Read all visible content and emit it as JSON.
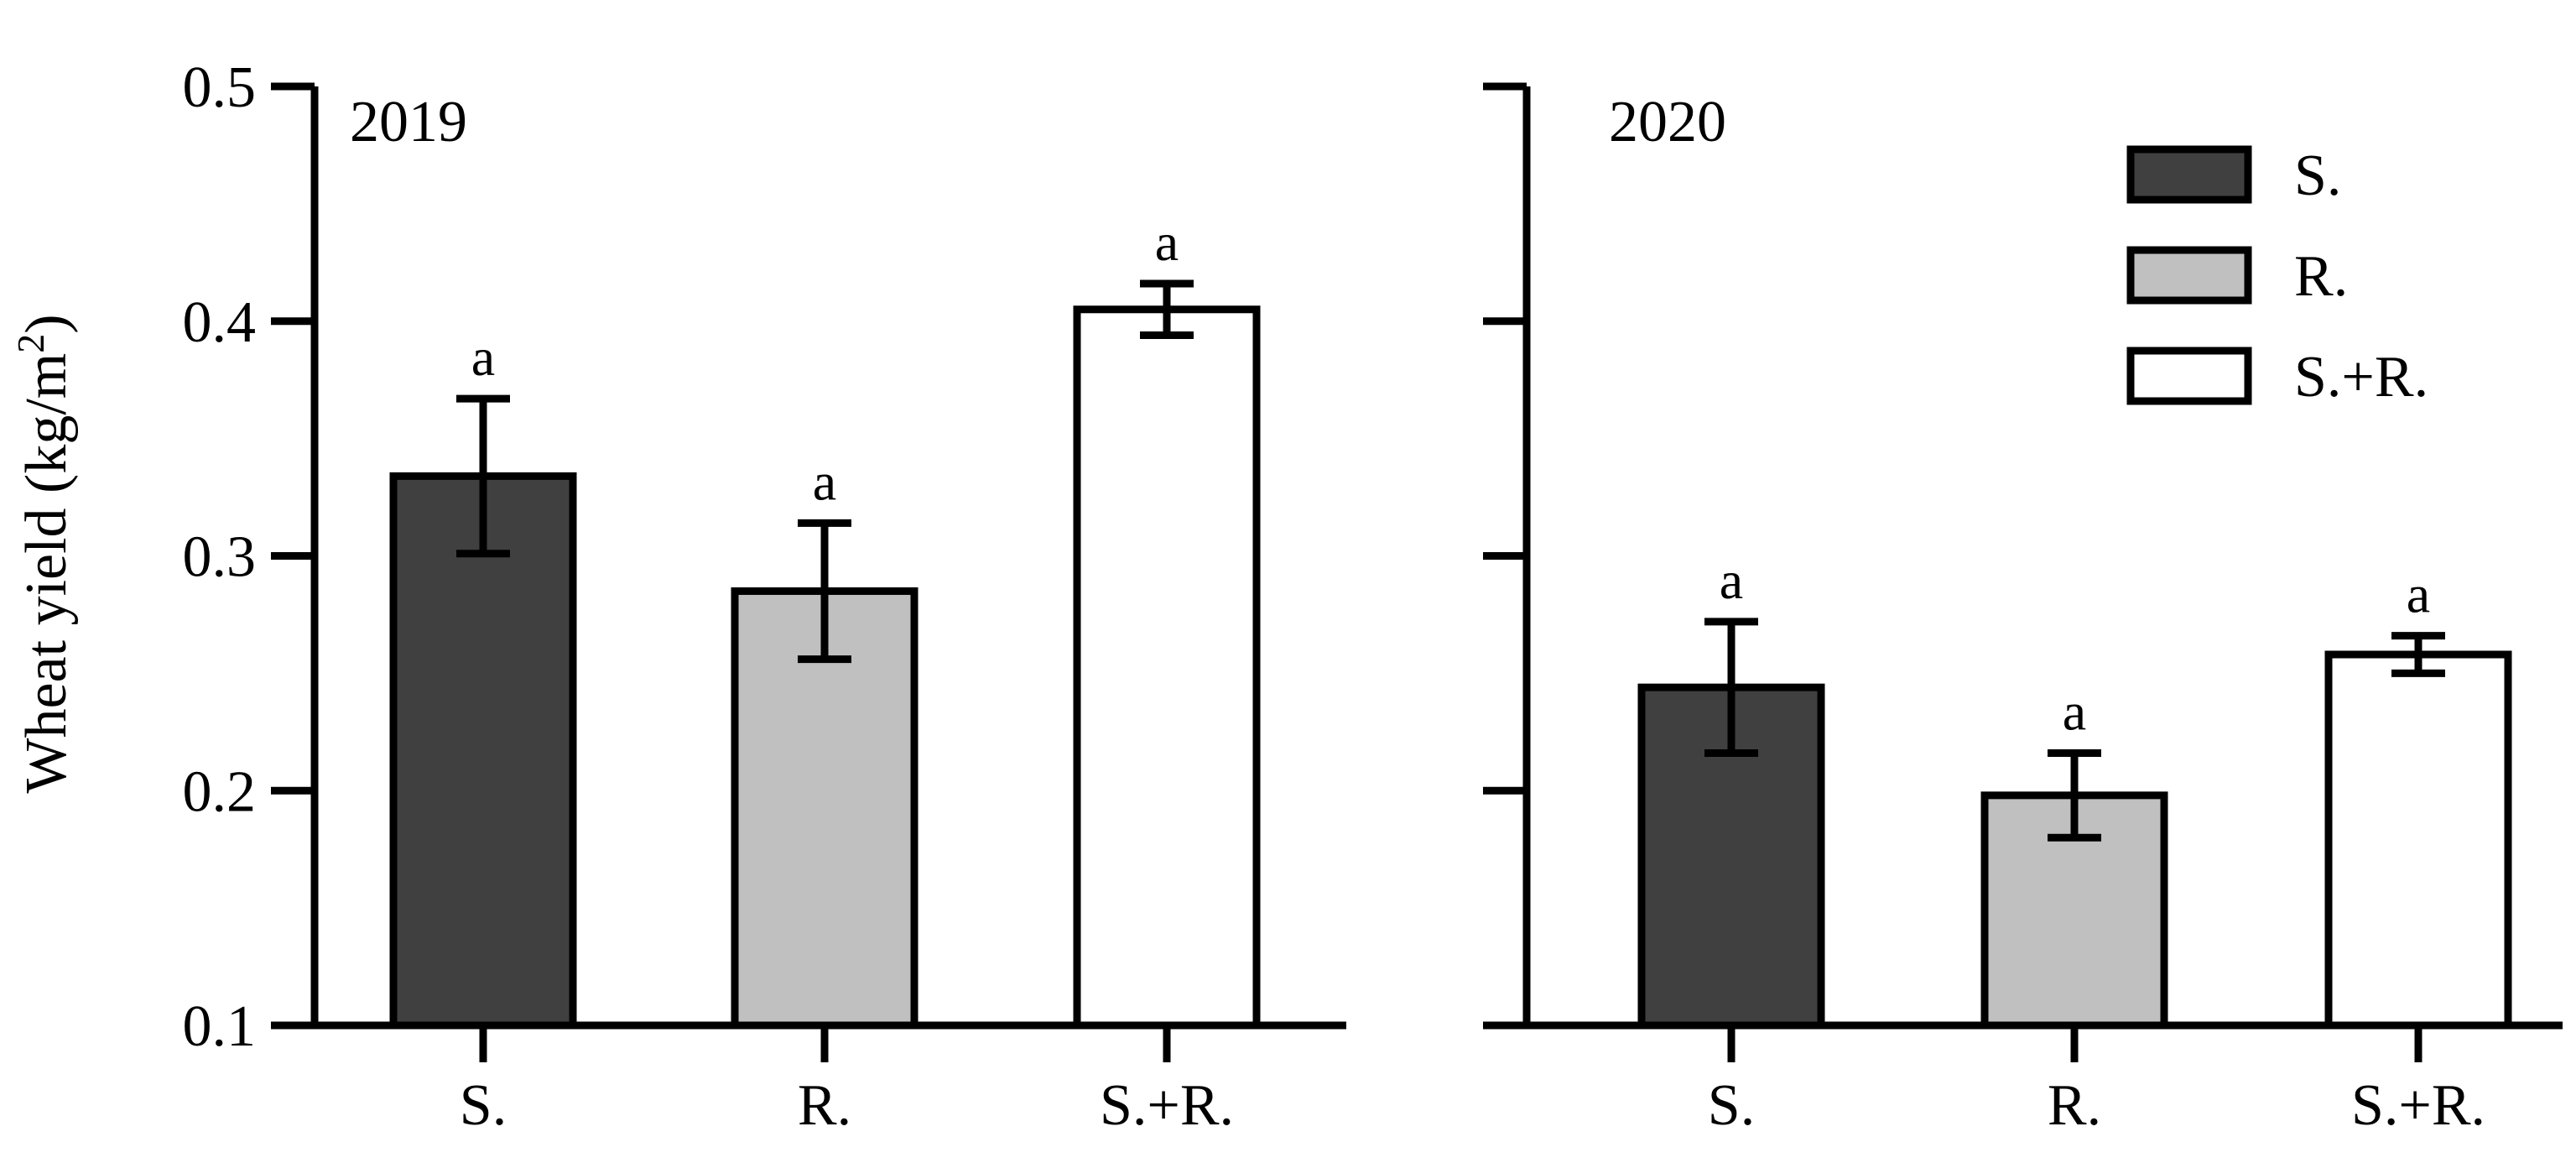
{
  "chart_data": {
    "type": "bar",
    "ylabel": "Wheat yield (kg/m",
    "ylabel_sup": "2",
    "ylabel_close": ")",
    "ylim": [
      0.1,
      0.5
    ],
    "yticks": [
      "0.1",
      "0.2",
      "0.3",
      "0.4",
      "0.5"
    ],
    "categories": [
      "S.",
      "R.",
      "S.+R."
    ],
    "legend": [
      {
        "name": "S.",
        "color": "#404040"
      },
      {
        "name": "R.",
        "color": "#c0c0c0"
      },
      {
        "name": "S.+R.",
        "color": "#ffffff"
      }
    ],
    "legend_position": "top-right",
    "grid": false,
    "panels": [
      {
        "label": "2019",
        "values": [
          0.334,
          0.285,
          0.405
        ],
        "errors": [
          0.033,
          0.029,
          0.011
        ],
        "significance": [
          "a",
          "a",
          "a"
        ]
      },
      {
        "label": "2020",
        "values": [
          0.244,
          0.198,
          0.258
        ],
        "errors": [
          0.028,
          0.018,
          0.008
        ],
        "significance": [
          "a",
          "a",
          "a"
        ]
      }
    ]
  }
}
